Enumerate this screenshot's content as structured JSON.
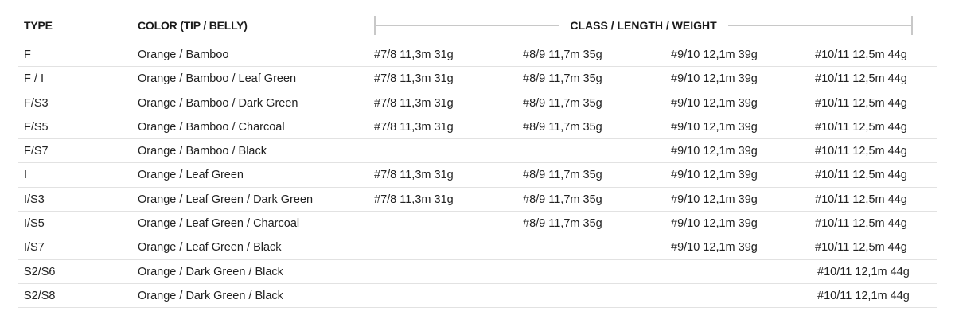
{
  "headers": {
    "type": "TYPE",
    "color": "COLOR (TIP / BELLY)",
    "specs": "CLASS / LENGTH / WEIGHT"
  },
  "rows": [
    {
      "type": "F",
      "color": "Orange / Bamboo",
      "c1": "#7/8 11,3m 31g",
      "c2": "#8/9 11,7m 35g",
      "c3": "#9/10 12,1m 39g",
      "c4": "#10/11 12,5m 44g"
    },
    {
      "type": "F / I",
      "color": "Orange / Bamboo / Leaf Green",
      "c1": "#7/8 11,3m 31g",
      "c2": "#8/9 11,7m 35g",
      "c3": "#9/10 12,1m 39g",
      "c4": "#10/11 12,5m 44g"
    },
    {
      "type": "F/S3",
      "color": "Orange / Bamboo / Dark Green",
      "c1": "#7/8 11,3m 31g",
      "c2": "#8/9 11,7m 35g",
      "c3": "#9/10 12,1m 39g",
      "c4": "#10/11 12,5m 44g"
    },
    {
      "type": "F/S5",
      "color": "Orange / Bamboo / Charcoal",
      "c1": "#7/8 11,3m 31g",
      "c2": "#8/9 11,7m 35g",
      "c3": "#9/10 12,1m 39g",
      "c4": "#10/11 12,5m 44g"
    },
    {
      "type": "F/S7",
      "color": "Orange / Bamboo / Black",
      "c1": "",
      "c2": "",
      "c3": "#9/10 12,1m 39g",
      "c4": "#10/11 12,5m 44g"
    },
    {
      "type": "I",
      "color": "Orange / Leaf Green",
      "c1": "#7/8 11,3m 31g",
      "c2": "#8/9 11,7m 35g",
      "c3": "#9/10 12,1m 39g",
      "c4": "#10/11 12,5m 44g"
    },
    {
      "type": "I/S3",
      "color": "Orange / Leaf Green / Dark Green",
      "c1": "#7/8 11,3m 31g",
      "c2": "#8/9 11,7m 35g",
      "c3": "#9/10 12,1m 39g",
      "c4": "#10/11 12,5m 44g"
    },
    {
      "type": "I/S5",
      "color": "Orange / Leaf Green / Charcoal",
      "c1": "",
      "c2": "#8/9 11,7m 35g",
      "c3": "#9/10 12,1m 39g",
      "c4": "#10/11 12,5m 44g"
    },
    {
      "type": "I/S7",
      "color": "Orange / Leaf Green / Black",
      "c1": "",
      "c2": "",
      "c3": "#9/10 12,1m 39g",
      "c4": "#10/11 12,5m 44g"
    },
    {
      "type": "S2/S6",
      "color": "Orange / Dark Green / Black",
      "c1": "",
      "c2": "",
      "c3": "",
      "c4": "#10/11 12,1m 44g"
    },
    {
      "type": "S2/S8",
      "color": "Orange / Dark Green / Black",
      "c1": "",
      "c2": "",
      "c3": "",
      "c4": "#10/11 12,1m 44g"
    }
  ]
}
